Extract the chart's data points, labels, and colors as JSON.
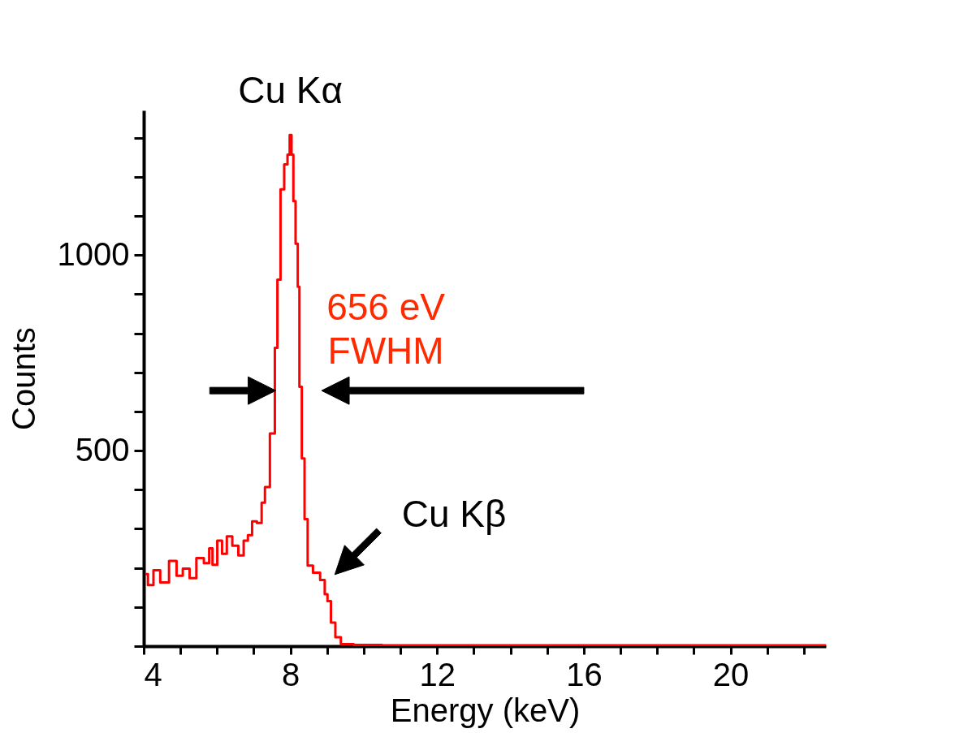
{
  "chart_data": {
    "type": "step",
    "xlabel": "Energy (keV)",
    "ylabel": "Counts",
    "xlim": [
      4,
      22.6
    ],
    "ylim": [
      0,
      1370
    ],
    "xticks": [
      4,
      {
        "value": 5,
        "label": null
      },
      {
        "value": 6,
        "label": null
      },
      {
        "value": 7,
        "label": null
      },
      8,
      {
        "value": 9,
        "label": null
      },
      {
        "value": 10,
        "label": null
      },
      {
        "value": 11,
        "label": null
      },
      12,
      {
        "value": 13,
        "label": null
      },
      {
        "value": 14,
        "label": null
      },
      {
        "value": 15,
        "label": null
      },
      16,
      {
        "value": 17,
        "label": null
      },
      {
        "value": 18,
        "label": null
      },
      {
        "value": 19,
        "label": null
      },
      20,
      {
        "value": 21,
        "label": null
      },
      {
        "value": 22,
        "label": null
      }
    ],
    "yticks": [
      {
        "value": 0,
        "label": null
      },
      {
        "value": 100,
        "label": null
      },
      {
        "value": 200,
        "label": null
      },
      {
        "value": 300,
        "label": null
      },
      {
        "value": 400,
        "label": null
      },
      500,
      {
        "value": 600,
        "label": null
      },
      {
        "value": 700,
        "label": null
      },
      {
        "value": 800,
        "label": null
      },
      {
        "value": 900,
        "label": null
      },
      1000,
      {
        "value": 1100,
        "label": null
      },
      {
        "value": 1200,
        "label": null
      },
      {
        "value": 1300,
        "label": null
      }
    ],
    "grid": false,
    "marker": "none",
    "line_style": "solid",
    "series": [
      {
        "color": "#ff0000",
        "x": [
          4.04,
          4.19,
          4.34,
          4.56,
          4.82,
          4.97,
          5.16,
          5.34,
          5.53,
          5.75,
          5.82,
          5.93,
          6.08,
          6.19,
          6.34,
          6.49,
          6.67,
          6.78,
          6.9,
          7.01,
          7.16,
          7.27,
          7.34,
          7.54,
          7.61,
          7.68,
          7.78,
          7.88,
          7.96,
          8.0,
          8.06,
          8.1,
          8.18,
          8.22,
          8.27,
          8.35,
          8.42,
          8.52,
          8.71,
          8.91,
          8.96,
          9.06,
          9.15,
          9.3,
          9.45,
          10,
          11,
          12,
          14,
          16,
          18,
          20,
          22,
          22.6
        ],
        "values": [
          184,
          156,
          194,
          163,
          218,
          180,
          198,
          174,
          225,
          212,
          250,
          208,
          270,
          236,
          281,
          257,
          232,
          270,
          284,
          319,
          315,
          367,
          407,
          544,
          763,
          937,
          1168,
          1232,
          1257,
          1307,
          1257,
          1138,
          1029,
          919,
          663,
          480,
          325,
          206,
          188,
          169,
          133,
          115,
          60,
          23,
          5,
          3,
          2,
          2,
          2,
          2,
          2,
          2,
          2,
          2
        ]
      }
    ],
    "annotations": [
      {
        "text": "Cu Kα",
        "x": 8.0,
        "y": 1307
      },
      "656 eV\nFWHM",
      {
        "text": "Cu Kβ",
        "x": 8.96,
        "y": 170
      }
    ]
  }
}
